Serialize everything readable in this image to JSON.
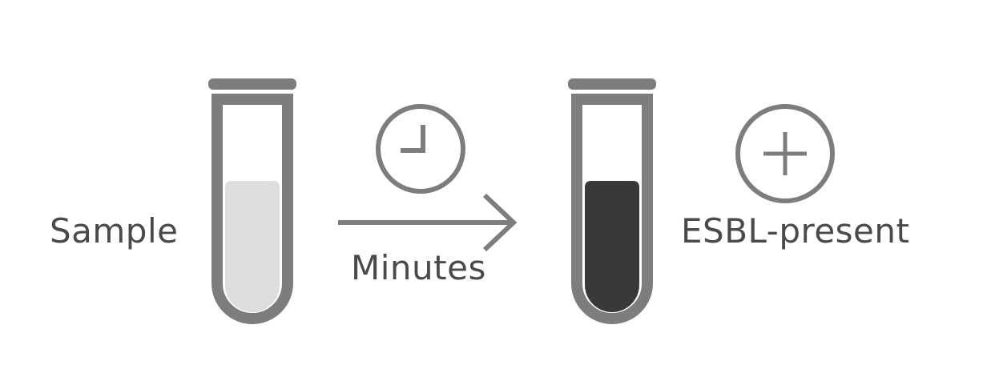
{
  "labels": {
    "sample": "Sample",
    "minutes": "Minutes",
    "result": "ESBL-present"
  },
  "icons": {
    "tube_before": "test-tube-icon",
    "clock": "clock-icon",
    "arrow": "arrow-right-icon",
    "tube_after": "test-tube-icon",
    "positive": "plus-circle-icon"
  },
  "colors": {
    "outline": "#7d7d7d",
    "text": "#4a4a4a",
    "liquid_before": "#dcdddf",
    "liquid_after": "#39393b",
    "glass": "#ffffff"
  }
}
